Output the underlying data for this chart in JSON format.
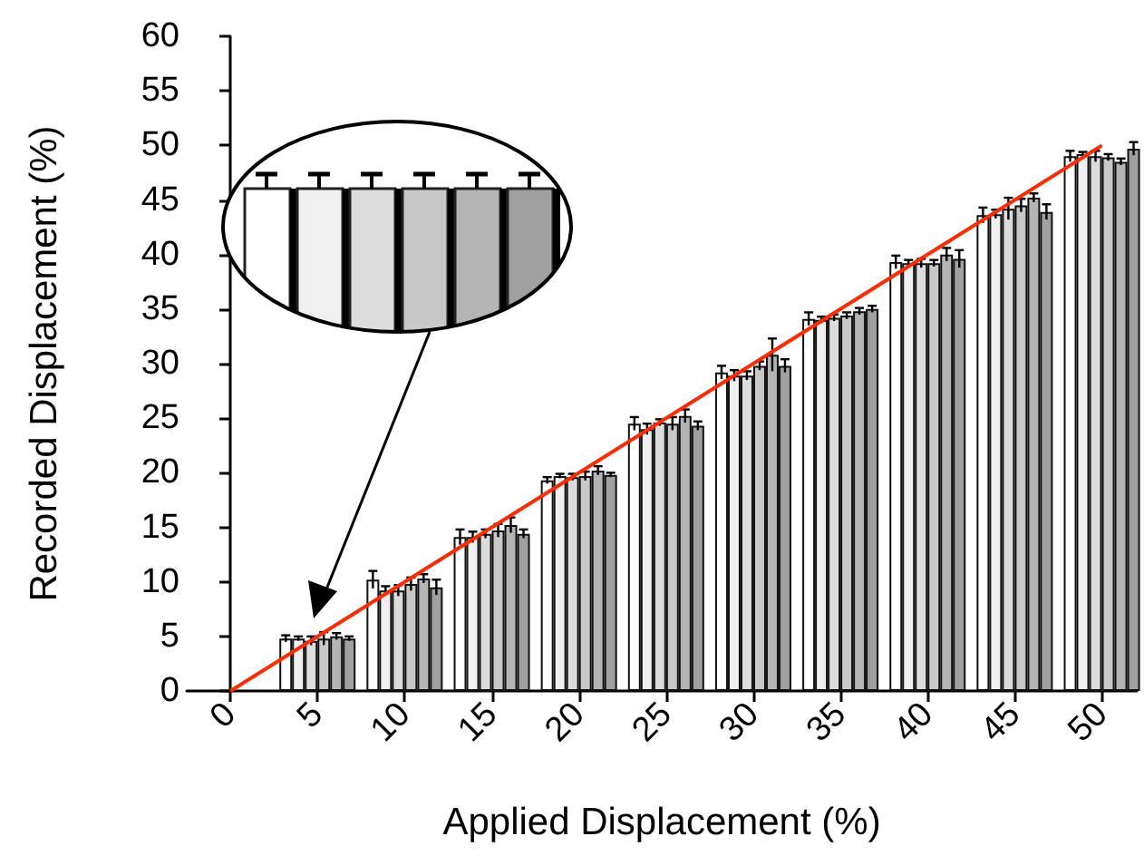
{
  "chart_data": {
    "type": "bar",
    "xlabel": "Applied Displacement (%)",
    "ylabel": "Recorded Displacement (%)",
    "x": [
      5,
      10,
      15,
      20,
      25,
      30,
      35,
      40,
      45,
      50
    ],
    "xlim": [
      -2.5,
      52
    ],
    "xticks": [
      0,
      5,
      10,
      15,
      20,
      25,
      30,
      35,
      40,
      45,
      50
    ],
    "ylim": [
      0,
      60
    ],
    "yticks": [
      0,
      5,
      10,
      15,
      20,
      25,
      30,
      35,
      40,
      45,
      50,
      55,
      60
    ],
    "grid": false,
    "series": [
      {
        "color": "#ffffff",
        "values": [
          4.8,
          10.2,
          14.1,
          19.3,
          24.5,
          29.2,
          34.1,
          39.3,
          43.6,
          49.0
        ],
        "errors": [
          0.3,
          0.8,
          0.7,
          0.3,
          0.6,
          0.6,
          0.6,
          0.6,
          0.7,
          0.5
        ]
      },
      {
        "color": "#f0f0f0",
        "values": [
          4.8,
          9.2,
          14.1,
          19.7,
          24.0,
          28.9,
          34.0,
          39.2,
          43.7,
          49.2
        ],
        "errors": [
          0.2,
          0.4,
          0.5,
          0.2,
          0.5,
          0.5,
          0.3,
          0.3,
          0.4,
          0.2
        ]
      },
      {
        "color": "#dcdcdc",
        "values": [
          4.6,
          9.2,
          14.4,
          19.6,
          24.6,
          28.9,
          34.2,
          39.2,
          44.2,
          49.0
        ],
        "errors": [
          0.4,
          0.5,
          0.4,
          0.3,
          0.3,
          0.4,
          0.3,
          0.4,
          1.0,
          0.5
        ]
      },
      {
        "color": "#c8c8c8",
        "values": [
          4.8,
          9.8,
          14.7,
          19.7,
          24.5,
          29.8,
          34.4,
          39.2,
          44.5,
          48.9
        ],
        "errors": [
          0.6,
          0.6,
          0.6,
          0.4,
          0.6,
          0.4,
          0.3,
          0.3,
          0.6,
          0.3
        ]
      },
      {
        "color": "#b4b4b4",
        "values": [
          5.0,
          10.3,
          15.2,
          20.2,
          25.2,
          30.8,
          34.8,
          40.0,
          45.2,
          48.5
        ],
        "errors": [
          0.3,
          0.4,
          0.7,
          0.4,
          0.6,
          1.5,
          0.3,
          0.6,
          0.4,
          0.3
        ]
      },
      {
        "color": "#a0a0a0",
        "values": [
          4.8,
          9.5,
          14.4,
          19.8,
          24.3,
          29.8,
          35.0,
          39.6,
          43.9,
          49.7
        ],
        "errors": [
          0.2,
          0.7,
          0.4,
          0.2,
          0.4,
          0.6,
          0.3,
          0.8,
          0.7,
          0.6
        ]
      },
      {
        "type": "line",
        "color": "#ff2a00",
        "x": [
          0,
          50
        ],
        "values": [
          0,
          50
        ],
        "marker": "none"
      }
    ]
  }
}
